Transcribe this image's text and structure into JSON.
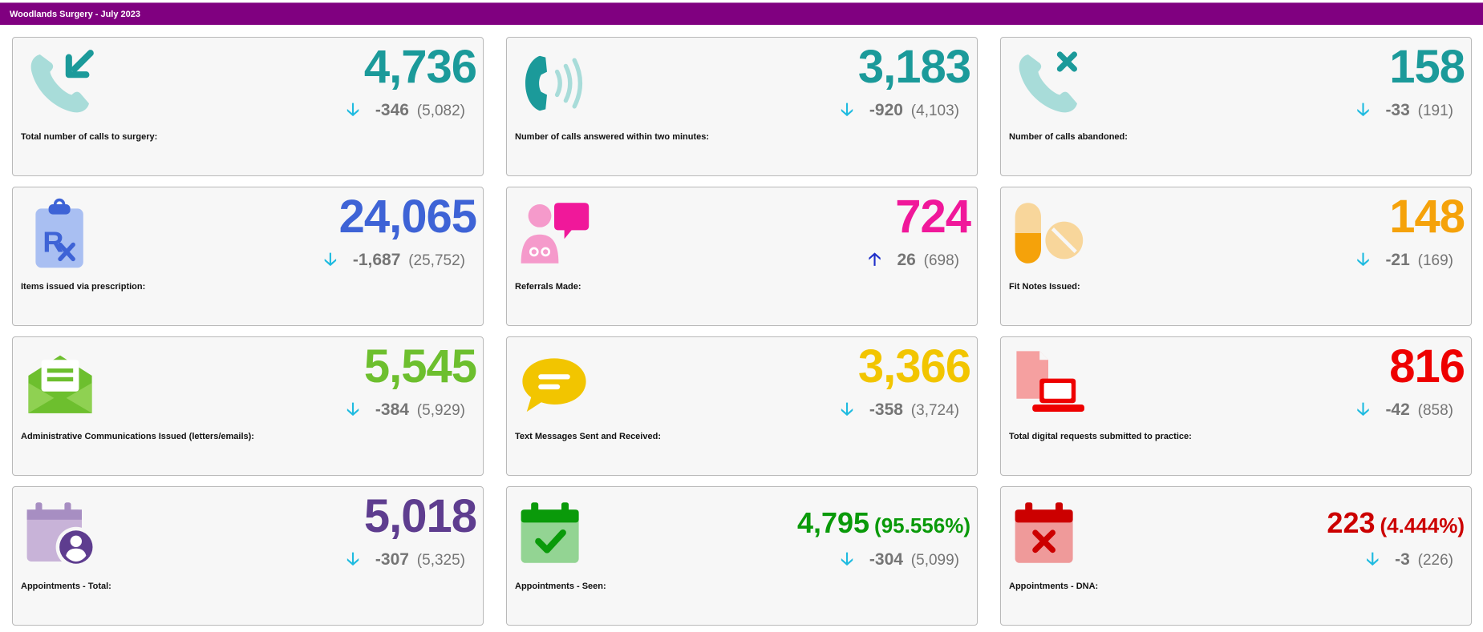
{
  "header": {
    "title": "Woodlands Surgery - July 2023"
  },
  "cards": [
    {
      "label": "Total number of calls to surgery:",
      "value": "4,736",
      "change": "-346",
      "previous": "(5,082)",
      "direction": "down",
      "color": "#1b9a9a",
      "icon": "phone-incoming-icon"
    },
    {
      "label": "Number of calls answered within two minutes:",
      "value": "3,183",
      "change": "-920",
      "previous": "(4,103)",
      "direction": "down",
      "color": "#1b9a9a",
      "icon": "phone-ringing-icon"
    },
    {
      "label": "Number of calls abandoned:",
      "value": "158",
      "change": "-33",
      "previous": "(191)",
      "direction": "down",
      "color": "#1b9a9a",
      "icon": "phone-missed-icon"
    },
    {
      "label": "Items issued via prescription:",
      "value": "24,065",
      "change": "-1,687",
      "previous": "(25,752)",
      "direction": "down",
      "color": "#3e63d6",
      "icon": "prescription-clipboard-icon"
    },
    {
      "label": "Referrals Made:",
      "value": "724",
      "change": "26",
      "previous": "(698)",
      "direction": "up",
      "color": "#f0189a",
      "icon": "doctor-chat-icon"
    },
    {
      "label": "Fit Notes Issued:",
      "value": "148",
      "change": "-21",
      "previous": "(169)",
      "direction": "down",
      "color": "#f5a20a",
      "icon": "pills-icon"
    },
    {
      "label": "Administrative Communications Issued (letters/emails):",
      "value": "5,545",
      "change": "-384",
      "previous": "(5,929)",
      "direction": "down",
      "color": "#6dbf2e",
      "icon": "open-envelope-icon"
    },
    {
      "label": "Text Messages Sent and Received:",
      "value": "3,366",
      "change": "-358",
      "previous": "(3,724)",
      "direction": "down",
      "color": "#f2c500",
      "icon": "message-bubble-icon"
    },
    {
      "label": "Total digital requests submitted to practice:",
      "value": "816",
      "change": "-42",
      "previous": "(858)",
      "direction": "down",
      "color": "#ee0000",
      "icon": "laptop-document-icon"
    },
    {
      "label": "Appointments - Total:",
      "value": "5,018",
      "change": "-307",
      "previous": "(5,325)",
      "direction": "down",
      "color": "#5e3d8f",
      "icon": "calendar-user-icon"
    },
    {
      "label": "Appointments - Seen:",
      "value": "4,795",
      "percent": "(95.556%)",
      "change": "-304",
      "previous": "(5,099)",
      "direction": "down",
      "color": "#0a9a0a",
      "icon": "calendar-check-icon"
    },
    {
      "label": "Appointments - DNA:",
      "value": "223",
      "percent": "(4.444%)",
      "change": "-3",
      "previous": "(226)",
      "direction": "down",
      "color": "#cc0000",
      "icon": "calendar-cross-icon"
    }
  ],
  "arrows": {
    "down": "🡣",
    "up": "🡡"
  }
}
